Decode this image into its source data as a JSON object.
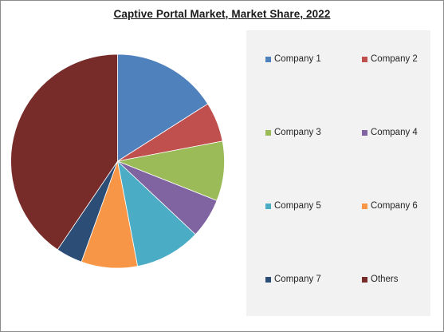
{
  "chart_data": {
    "type": "pie",
    "title": "Captive Portal Market, Market Share, 2022",
    "categories": [
      "Company 1",
      "Company 2",
      "Company 3",
      "Company 4",
      "Company 5",
      "Company 6",
      "Company 7",
      "Others"
    ],
    "values": [
      16,
      6,
      9,
      6,
      10,
      8.5,
      4,
      40.5
    ],
    "colors": [
      "#4f81bd",
      "#c0504d",
      "#9bbb59",
      "#8064a2",
      "#4bacc6",
      "#f79646",
      "#2c4d75",
      "#772c2a"
    ],
    "legend_position": "right",
    "start_angle_deg": 0,
    "direction": "clockwise"
  }
}
